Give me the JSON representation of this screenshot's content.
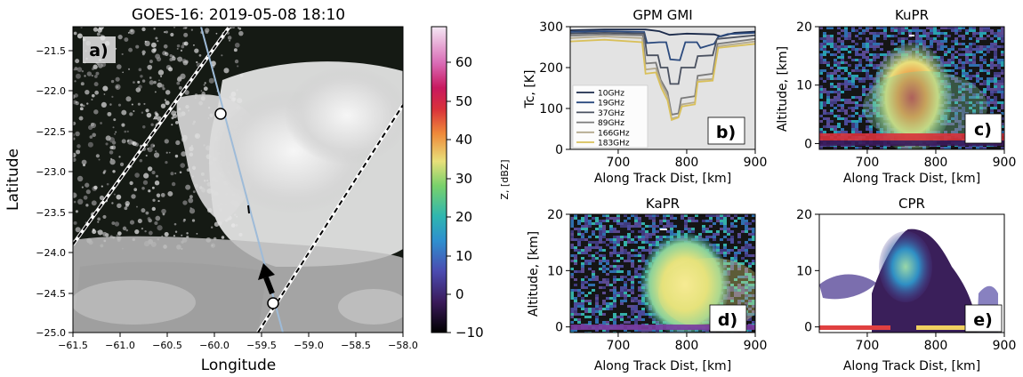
{
  "figure": {
    "map_panel": {
      "title": "GOES-16: 2019-05-08 18:10",
      "label": "a)",
      "xlabel": "Longitude",
      "ylabel": "Latitude",
      "xticks": [
        "−61.5",
        "−61.0",
        "−60.5",
        "−60.0",
        "−59.5",
        "−59.0",
        "−58.5",
        "−58.0"
      ],
      "yticks": [
        "−21.5",
        "−22.0",
        "−22.5",
        "−23.0",
        "−23.5",
        "−24.0",
        "−24.5",
        "−25.0"
      ],
      "colorbar_label": "Z, [dBZ]",
      "colorbar_ticks": [
        "60",
        "50",
        "40",
        "30",
        "20",
        "10",
        "0",
        "−10"
      ]
    },
    "gmi_panel": {
      "title": "GPM GMI",
      "label": "b)",
      "xlabel": "Along Track Dist, [km]",
      "ylabel": "Tc, [K]",
      "xticks": [
        "700",
        "800",
        "900"
      ],
      "yticks": [
        "0",
        "100",
        "200",
        "300"
      ],
      "legend": [
        "10GHz",
        "19GHz",
        "37GHz",
        "89GHz",
        "166GHz",
        "183GHz"
      ]
    },
    "kupr_panel": {
      "title": "KuPR",
      "label": "c)",
      "xlabel": "Along Track Dist, [km]",
      "ylabel": "Altitude, [km]",
      "xticks": [
        "700",
        "800",
        "900"
      ],
      "yticks": [
        "0",
        "10",
        "20"
      ]
    },
    "kapr_panel": {
      "title": "KaPR",
      "label": "d)",
      "xlabel": "Along Track Dist, [km]",
      "ylabel": "Altitude, [km]",
      "xticks": [
        "700",
        "800",
        "900"
      ],
      "yticks": [
        "0",
        "10",
        "20"
      ]
    },
    "cpr_panel": {
      "title": "CPR",
      "label": "e)",
      "xlabel": "Along Track Dist, [km]",
      "ylabel": "",
      "xticks": [
        "700",
        "800",
        "900"
      ],
      "yticks": [
        "0",
        "10",
        "20"
      ]
    }
  },
  "colors": {
    "gmi_background": "#e3e3e3",
    "dark_sky": "#151a14",
    "cloud": "#f2f2f2",
    "cloudsat_track": "#9ebbd8",
    "gpm_swath_edge": "#000000"
  },
  "chart_data": [
    {
      "type": "line",
      "panel": "GPM GMI",
      "x_range": [
        630,
        900
      ],
      "y_range": [
        0,
        300
      ],
      "series": [
        {
          "name": "10GHz",
          "color": "#1b2a4a",
          "points": [
            [
              630,
              291
            ],
            [
              680,
              293
            ],
            [
              740,
              293
            ],
            [
              760,
              289
            ],
            [
              775,
              280
            ],
            [
              800,
              283
            ],
            [
              840,
              281
            ],
            [
              850,
              276
            ],
            [
              870,
              285
            ],
            [
              900,
              288
            ]
          ]
        },
        {
          "name": "19GHz",
          "color": "#2b4a7e",
          "points": [
            [
              630,
              287
            ],
            [
              680,
              289
            ],
            [
              738,
              287
            ],
            [
              742,
              260
            ],
            [
              760,
              262
            ],
            [
              770,
              262
            ],
            [
              776,
              220
            ],
            [
              790,
              218
            ],
            [
              798,
              262
            ],
            [
              815,
              262
            ],
            [
              820,
              248
            ],
            [
              840,
              258
            ],
            [
              846,
              275
            ],
            [
              860,
              282
            ],
            [
              900,
              285
            ]
          ]
        },
        {
          "name": "37GHz",
          "color": "#4a5160",
          "points": [
            [
              630,
              283
            ],
            [
              680,
              285
            ],
            [
              738,
              283
            ],
            [
              742,
              230
            ],
            [
              758,
              230
            ],
            [
              762,
              200
            ],
            [
              772,
              200
            ],
            [
              776,
              160
            ],
            [
              788,
              160
            ],
            [
              792,
              200
            ],
            [
              812,
              200
            ],
            [
              816,
              228
            ],
            [
              838,
              230
            ],
            [
              844,
              270
            ],
            [
              900,
              279
            ]
          ]
        },
        {
          "name": "89GHz",
          "color": "#7a7a7a",
          "points": [
            [
              630,
              278
            ],
            [
              680,
              281
            ],
            [
              736,
              279
            ],
            [
              740,
              210
            ],
            [
              755,
              212
            ],
            [
              762,
              170
            ],
            [
              772,
              140
            ],
            [
              778,
              85
            ],
            [
              788,
              88
            ],
            [
              792,
              125
            ],
            [
              812,
              130
            ],
            [
              816,
              180
            ],
            [
              838,
              185
            ],
            [
              845,
              258
            ],
            [
              900,
              270
            ]
          ]
        },
        {
          "name": "166GHz",
          "color": "#b3a98e",
          "points": [
            [
              630,
              272
            ],
            [
              680,
              276
            ],
            [
              735,
              272
            ],
            [
              740,
              195
            ],
            [
              755,
              198
            ],
            [
              763,
              160
            ],
            [
              772,
              130
            ],
            [
              778,
              75
            ],
            [
              788,
              80
            ],
            [
              793,
              110
            ],
            [
              812,
              115
            ],
            [
              816,
              170
            ],
            [
              838,
              172
            ],
            [
              846,
              252
            ],
            [
              900,
              264
            ]
          ]
        },
        {
          "name": "183GHz",
          "color": "#d9c05a",
          "points": [
            [
              630,
              264
            ],
            [
              680,
              268
            ],
            [
              735,
              262
            ],
            [
              740,
              185
            ],
            [
              755,
              188
            ],
            [
              763,
              150
            ],
            [
              772,
              120
            ],
            [
              778,
              72
            ],
            [
              788,
              78
            ],
            [
              793,
              105
            ],
            [
              812,
              110
            ],
            [
              816,
              165
            ],
            [
              838,
              168
            ],
            [
              846,
              248
            ],
            [
              900,
              258
            ]
          ]
        }
      ]
    },
    {
      "type": "heatmap",
      "panel": "KuPR",
      "x_range": [
        630,
        900
      ],
      "y_range": [
        0,
        20
      ],
      "description_values": {
        "core_top_km": 17,
        "core_center_km": 768
      }
    },
    {
      "type": "heatmap",
      "panel": "KaPR",
      "x_range": [
        630,
        900
      ],
      "y_range": [
        0,
        20
      ],
      "description_values": {
        "core_top_km": 16,
        "core_center_km": 768
      }
    },
    {
      "type": "heatmap",
      "panel": "CPR",
      "x_range": [
        630,
        900
      ],
      "y_range": [
        0,
        20
      ],
      "description_values": {
        "core_top_km": 17,
        "core_center_km": 772
      }
    }
  ]
}
